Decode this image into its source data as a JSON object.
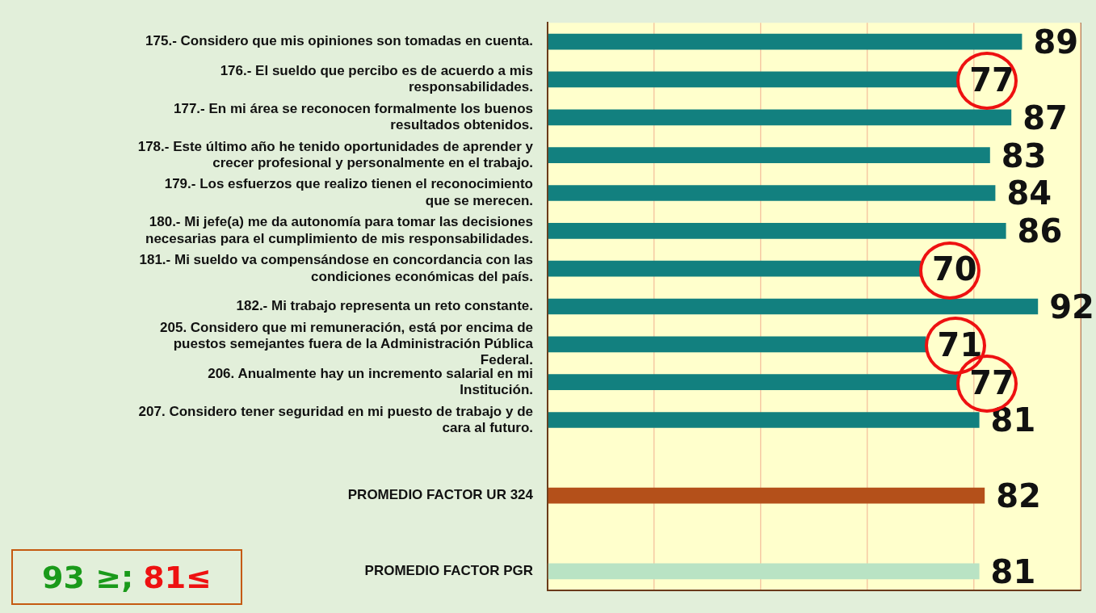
{
  "chart_data": {
    "type": "bar",
    "orientation": "horizontal",
    "categories": [
      "175.- Considero que mis opiniones son tomadas en cuenta.",
      "176.- El sueldo que percibo es de acuerdo a mis responsabilidades.",
      "177.- En mi área se reconocen formalmente los buenos resultados obtenidos.",
      "178.- Este último año he tenido oportunidades de aprender y crecer profesional y personalmente en el trabajo.",
      "179.- Los esfuerzos que realizo tienen el reconocimiento que se merecen.",
      "180.- Mi jefe(a) me da autonomía para tomar las decisiones necesarias para el cumplimiento de mis responsabilidades.",
      "181.- Mi sueldo va compensándose en concordancia con las condiciones económicas del país.",
      "182.- Mi trabajo representa un reto constante.",
      "205. Considero que mi remuneración, está por encima de puestos semejantes fuera de la Administración Pública Federal.",
      "206. Anualmente hay un incremento salarial en mi Institución.",
      "207. Considero tener seguridad en mi puesto de trabajo y de cara al futuro.",
      null,
      "PROMEDIO FACTOR UR 324",
      null,
      "PROMEDIO FACTOR PGR"
    ],
    "values": [
      89,
      77,
      87,
      83,
      84,
      86,
      70,
      92,
      71,
      77,
      81,
      null,
      82,
      null,
      81
    ],
    "colors": [
      "#12807f",
      "#12807f",
      "#12807f",
      "#12807f",
      "#12807f",
      "#12807f",
      "#12807f",
      "#12807f",
      "#12807f",
      "#12807f",
      "#12807f",
      "#12807f",
      "#b4501a",
      "#12807f",
      "#b9e3c4"
    ],
    "xlim": [
      0,
      100
    ],
    "xticks": [
      {
        "value": 0,
        "label": null
      },
      {
        "value": 20,
        "label": null
      },
      {
        "value": 40,
        "label": null
      },
      {
        "value": 60,
        "label": null
      },
      {
        "value": 80,
        "label": null
      },
      {
        "value": 100,
        "label": null
      }
    ],
    "grid": "x",
    "tick_labels": "y",
    "data_labels": true,
    "legend": false,
    "annotations": [
      "93 ≥;",
      "81≤"
    ]
  }
}
